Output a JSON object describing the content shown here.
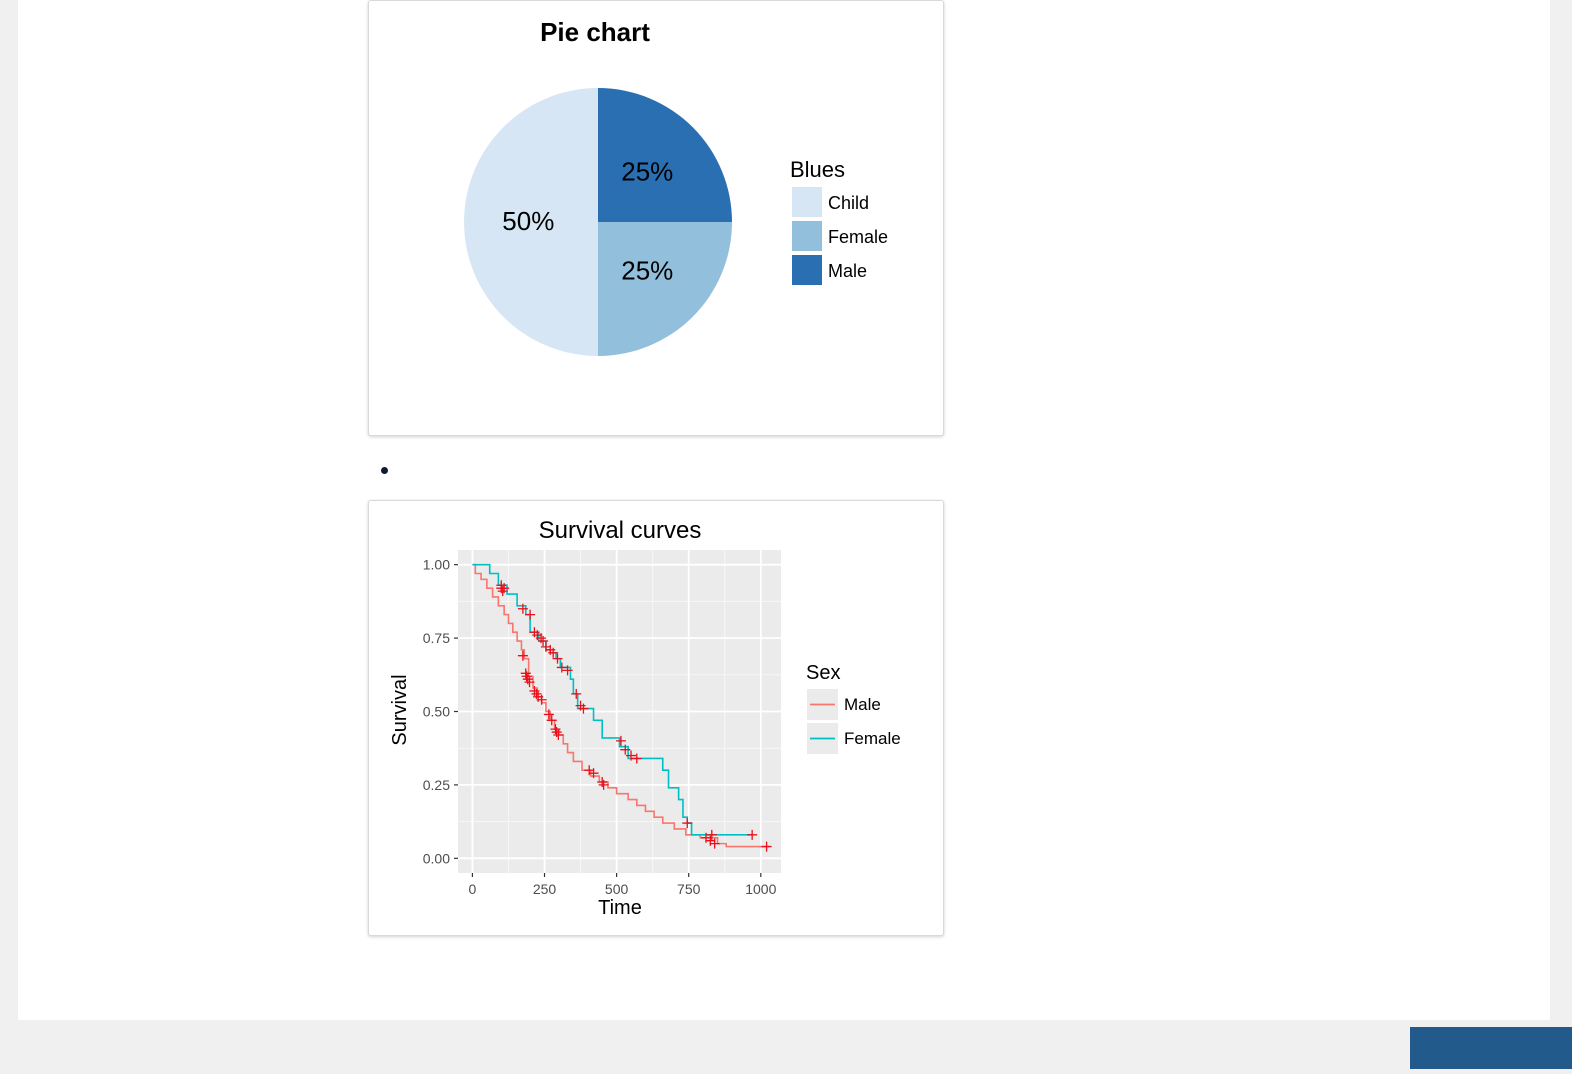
{
  "chart_data": [
    {
      "type": "pie",
      "title": "Pie chart",
      "legend_title": "Blues",
      "legend_position": "right",
      "slices": [
        {
          "label": "Child",
          "value": 50,
          "text": "50%",
          "color": "#d6e6f4"
        },
        {
          "label": "Female",
          "value": 25,
          "text": "25%",
          "color": "#92bfdb"
        },
        {
          "label": "Male",
          "value": 25,
          "text": "25%",
          "color": "#2a6fb2"
        }
      ]
    },
    {
      "type": "line",
      "title": "Survival curves",
      "xlabel": "Time",
      "ylabel": "Survival",
      "xlim": [
        -50,
        1070
      ],
      "ylim": [
        -0.05,
        1.05
      ],
      "x_ticks": [
        0,
        250,
        500,
        750,
        1000
      ],
      "x_tick_labels": [
        "0",
        "250",
        "500",
        "750",
        "1000"
      ],
      "y_ticks": [
        0,
        0.25,
        0.5,
        0.75,
        1.0
      ],
      "y_tick_labels": [
        "0.00",
        "0.25",
        "0.50",
        "0.75",
        "1.00"
      ],
      "grid": true,
      "legend_title": "Sex",
      "legend_position": "right",
      "censor_color": "#e8101a",
      "series": [
        {
          "name": "Male",
          "color": "#f8766d",
          "steps": [
            [
              0,
              1.0
            ],
            [
              10,
              0.97
            ],
            [
              30,
              0.95
            ],
            [
              50,
              0.92
            ],
            [
              70,
              0.89
            ],
            [
              90,
              0.86
            ],
            [
              110,
              0.83
            ],
            [
              125,
              0.8
            ],
            [
              140,
              0.77
            ],
            [
              155,
              0.74
            ],
            [
              170,
              0.71
            ],
            [
              180,
              0.68
            ],
            [
              195,
              0.62
            ],
            [
              210,
              0.58
            ],
            [
              225,
              0.55
            ],
            [
              240,
              0.53
            ],
            [
              255,
              0.5
            ],
            [
              270,
              0.47
            ],
            [
              285,
              0.44
            ],
            [
              300,
              0.42
            ],
            [
              315,
              0.39
            ],
            [
              330,
              0.36
            ],
            [
              350,
              0.33
            ],
            [
              380,
              0.3
            ],
            [
              410,
              0.28
            ],
            [
              440,
              0.26
            ],
            [
              470,
              0.24
            ],
            [
              500,
              0.22
            ],
            [
              540,
              0.2
            ],
            [
              570,
              0.18
            ],
            [
              600,
              0.16
            ],
            [
              630,
              0.14
            ],
            [
              660,
              0.12
            ],
            [
              700,
              0.1
            ],
            [
              740,
              0.08
            ],
            [
              790,
              0.07
            ],
            [
              850,
              0.05
            ],
            [
              880,
              0.04
            ],
            [
              1030,
              0.04
            ]
          ],
          "censor": [
            [
              100,
              0.92
            ],
            [
              105,
              0.91
            ],
            [
              175,
              0.69
            ],
            [
              185,
              0.63
            ],
            [
              188,
              0.62
            ],
            [
              192,
              0.61
            ],
            [
              198,
              0.6
            ],
            [
              215,
              0.57
            ],
            [
              222,
              0.56
            ],
            [
              228,
              0.55
            ],
            [
              240,
              0.54
            ],
            [
              265,
              0.49
            ],
            [
              275,
              0.47
            ],
            [
              288,
              0.44
            ],
            [
              292,
              0.43
            ],
            [
              298,
              0.42
            ],
            [
              405,
              0.3
            ],
            [
              420,
              0.29
            ],
            [
              450,
              0.26
            ],
            [
              455,
              0.25
            ],
            [
              810,
              0.07
            ],
            [
              825,
              0.06
            ],
            [
              840,
              0.05
            ],
            [
              1020,
              0.04
            ]
          ]
        },
        {
          "name": "Female",
          "color": "#00bfc4",
          "steps": [
            [
              0,
              1.0
            ],
            [
              60,
              0.97
            ],
            [
              90,
              0.93
            ],
            [
              120,
              0.9
            ],
            [
              155,
              0.86
            ],
            [
              185,
              0.83
            ],
            [
              200,
              0.77
            ],
            [
              230,
              0.74
            ],
            [
              255,
              0.71
            ],
            [
              270,
              0.7
            ],
            [
              290,
              0.68
            ],
            [
              305,
              0.65
            ],
            [
              340,
              0.61
            ],
            [
              350,
              0.56
            ],
            [
              365,
              0.51
            ],
            [
              420,
              0.47
            ],
            [
              450,
              0.41
            ],
            [
              510,
              0.38
            ],
            [
              540,
              0.34
            ],
            [
              660,
              0.3
            ],
            [
              680,
              0.24
            ],
            [
              715,
              0.2
            ],
            [
              730,
              0.14
            ],
            [
              745,
              0.12
            ],
            [
              760,
              0.08
            ],
            [
              970,
              0.08
            ]
          ],
          "censor": [
            [
              100,
              0.93
            ],
            [
              110,
              0.92
            ],
            [
              175,
              0.85
            ],
            [
              200,
              0.83
            ],
            [
              215,
              0.77
            ],
            [
              225,
              0.76
            ],
            [
              238,
              0.75
            ],
            [
              245,
              0.74
            ],
            [
              255,
              0.72
            ],
            [
              270,
              0.71
            ],
            [
              280,
              0.7
            ],
            [
              295,
              0.68
            ],
            [
              310,
              0.65
            ],
            [
              330,
              0.64
            ],
            [
              360,
              0.56
            ],
            [
              375,
              0.52
            ],
            [
              385,
              0.51
            ],
            [
              515,
              0.4
            ],
            [
              530,
              0.37
            ],
            [
              550,
              0.35
            ],
            [
              570,
              0.34
            ],
            [
              745,
              0.12
            ],
            [
              830,
              0.08
            ],
            [
              970,
              0.08
            ]
          ]
        }
      ]
    }
  ]
}
